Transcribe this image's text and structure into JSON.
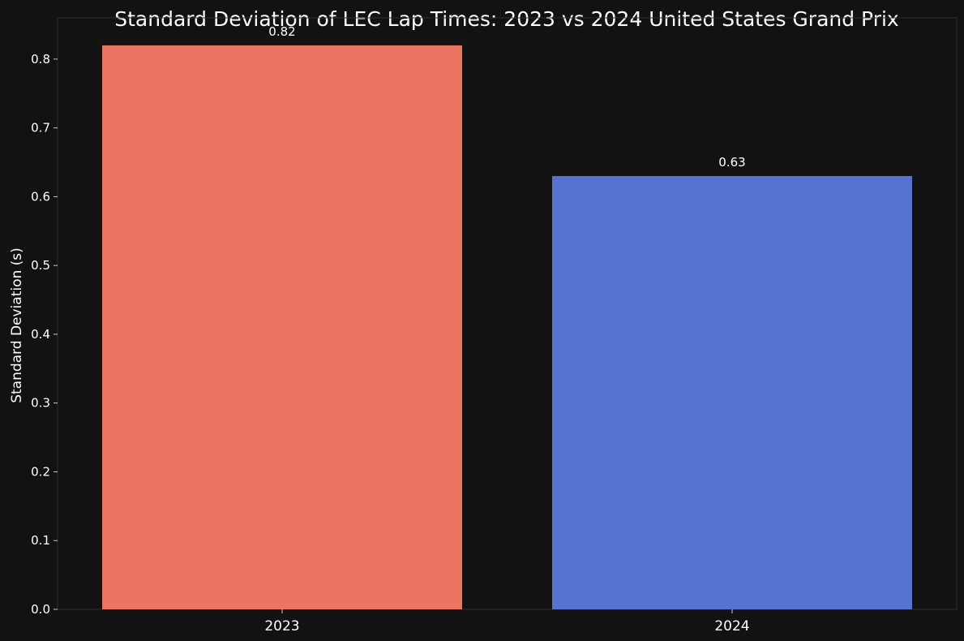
{
  "chart_data": {
    "type": "bar",
    "title": "Standard Deviation of LEC Lap Times: 2023 vs 2024 United States Grand Prix",
    "xlabel": "",
    "ylabel": "Standard Deviation (s)",
    "categories": [
      "2023",
      "2024"
    ],
    "values": [
      0.82,
      0.63
    ],
    "data_labels": [
      "0.82",
      "0.63"
    ],
    "bar_colors": [
      "#ea7561",
      "#5674cf"
    ],
    "ylim": [
      0,
      0.86
    ],
    "yticks": [
      0.0,
      0.1,
      0.2,
      0.3,
      0.4,
      0.5,
      0.6,
      0.7,
      0.8
    ],
    "ytick_labels": [
      "0.0",
      "0.1",
      "0.2",
      "0.3",
      "0.4",
      "0.5",
      "0.6",
      "0.7",
      "0.8"
    ],
    "grid": false,
    "legend": "none"
  },
  "colors": {
    "background": "#121212",
    "axis": "#333333",
    "text": "#ffffff"
  }
}
